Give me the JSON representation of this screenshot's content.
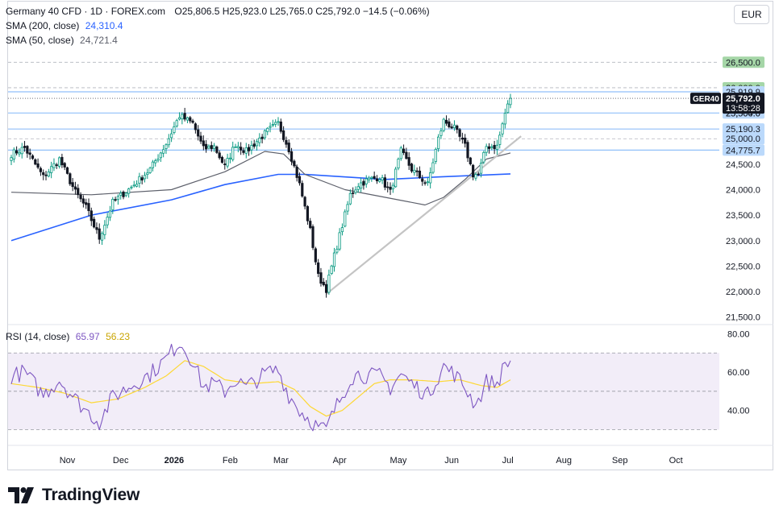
{
  "header": {
    "symbol_line": "Germany 40 CFD · 1D · FOREX.com",
    "ohlc": "O25,806.5  H25,923.0  L25,765.0  C25,792.0  −14.5 (−0.06%)",
    "sma200_label": "SMA (200, close)",
    "sma200_value": "24,310.4",
    "sma50_label": "SMA (50, close)",
    "sma50_value": "24,721.4",
    "currency": "EUR"
  },
  "rsi_legend": {
    "label": "RSI (14, close)",
    "value1": "65.97",
    "value2": "56.23"
  },
  "brand": {
    "name": "TradingView"
  },
  "colors": {
    "up": "#089981",
    "down": "#131722",
    "sma200": "#2962ff",
    "sma50": "#5d606b",
    "rsi": "#7e57c2",
    "rsi_ma": "#fdd835",
    "level_line": "#90bff9",
    "green_tag": "#a5d6a7",
    "blue_tag": "#bbd9fb",
    "trendline": "#c4c4c4"
  },
  "chart_data": [
    {
      "type": "candlestick",
      "title": "Germany 40 CFD · 1D · FOREX.com",
      "ylim": [
        21400,
        26900
      ],
      "y_ticks": [
        "26,500.0",
        "26,000.0",
        "25,500.0",
        "25,000.0",
        "24,500.0",
        "24,000.0",
        "23,500.0",
        "23,000.0",
        "22,500.0",
        "22,000.0",
        "21,500.0"
      ],
      "y_tick_values": [
        26500,
        26000,
        25500,
        25000,
        24500,
        24000,
        23500,
        23000,
        22500,
        22000,
        21500
      ],
      "x_ticks": [
        "Nov",
        "Dec",
        "2026",
        "Feb",
        "Mar",
        "Apr",
        "May",
        "Jun",
        "Jul",
        "Aug",
        "Sep",
        "Oct"
      ],
      "x_tick_index": [
        21,
        41,
        61,
        82,
        101,
        123,
        145,
        165,
        186,
        207,
        228,
        249
      ],
      "last_index": 187,
      "anchors": [
        [
          0,
          24700
        ],
        [
          5,
          24820
        ],
        [
          12,
          24250
        ],
        [
          18,
          24600
        ],
        [
          24,
          23950
        ],
        [
          28,
          23650
        ],
        [
          33,
          23050
        ],
        [
          38,
          23750
        ],
        [
          45,
          24050
        ],
        [
          52,
          24400
        ],
        [
          58,
          24900
        ],
        [
          63,
          25450
        ],
        [
          68,
          25300
        ],
        [
          72,
          24800
        ],
        [
          76,
          24850
        ],
        [
          80,
          24450
        ],
        [
          84,
          24900
        ],
        [
          88,
          24750
        ],
        [
          92,
          24950
        ],
        [
          96,
          25150
        ],
        [
          100,
          25300
        ],
        [
          104,
          24800
        ],
        [
          108,
          24100
        ],
        [
          112,
          23200
        ],
        [
          115,
          22300
        ],
        [
          118,
          22050
        ],
        [
          121,
          22700
        ],
        [
          124,
          23300
        ],
        [
          127,
          23900
        ],
        [
          130,
          24100
        ],
        [
          134,
          24200
        ],
        [
          138,
          24250
        ],
        [
          142,
          23950
        ],
        [
          146,
          24750
        ],
        [
          150,
          24400
        ],
        [
          154,
          24200
        ],
        [
          156,
          24100
        ],
        [
          160,
          25000
        ],
        [
          162,
          25350
        ],
        [
          166,
          25200
        ],
        [
          170,
          24850
        ],
        [
          173,
          24300
        ],
        [
          175,
          24300
        ],
        [
          178,
          24850
        ],
        [
          182,
          24850
        ],
        [
          185,
          25500
        ],
        [
          187,
          25792
        ]
      ],
      "sma200": [
        [
          0,
          23000
        ],
        [
          30,
          23500
        ],
        [
          60,
          23800
        ],
        [
          80,
          24100
        ],
        [
          100,
          24300
        ],
        [
          110,
          24300
        ],
        [
          140,
          24200
        ],
        [
          160,
          24250
        ],
        [
          187,
          24310
        ]
      ],
      "sma50": [
        [
          0,
          23950
        ],
        [
          30,
          23900
        ],
        [
          60,
          24000
        ],
        [
          80,
          24350
        ],
        [
          95,
          24750
        ],
        [
          102,
          24700
        ],
        [
          110,
          24300
        ],
        [
          125,
          24000
        ],
        [
          145,
          23800
        ],
        [
          155,
          23700
        ],
        [
          162,
          23850
        ],
        [
          170,
          24200
        ],
        [
          178,
          24600
        ],
        [
          187,
          24721
        ]
      ],
      "trendline": [
        [
          118,
          21950
        ],
        [
          191,
          25050
        ]
      ],
      "levels": [
        {
          "value": 26500,
          "label": "26,500.0",
          "style": "dashed",
          "tag": "green"
        },
        {
          "value": 26000,
          "label": "26,000.0",
          "style": "dashed",
          "tag": "green"
        },
        {
          "value": 25919.9,
          "label": "25,919.9",
          "style": "solid",
          "tag": "blue"
        },
        {
          "value": 25504,
          "label": "25,504.0",
          "style": "solid",
          "tag": "blue"
        },
        {
          "value": 25190.3,
          "label": "25,190.3",
          "style": "solid",
          "tag": "blue"
        },
        {
          "value": 25000,
          "label": "25,000.0",
          "style": "dashed",
          "tag": "blue"
        },
        {
          "value": 24775.7,
          "label": "24,775.7",
          "style": "solid",
          "tag": "blue"
        }
      ],
      "last_price": {
        "symbol": "GER40",
        "value": "25,792.0",
        "countdown": "13:58:28"
      }
    },
    {
      "type": "line",
      "title": "RSI (14, close)",
      "ylim": [
        23,
        84
      ],
      "y_ticks": [
        "80.00",
        "60.00",
        "40.00"
      ],
      "y_tick_values": [
        80,
        60,
        40
      ],
      "band": [
        30,
        70
      ],
      "mid": 50,
      "series": [
        {
          "name": "RSI",
          "anchors": [
            [
              0,
              58
            ],
            [
              5,
              60
            ],
            [
              12,
              48
            ],
            [
              18,
              56
            ],
            [
              24,
              46
            ],
            [
              28,
              40
            ],
            [
              33,
              34
            ],
            [
              38,
              47
            ],
            [
              45,
              53
            ],
            [
              52,
              59
            ],
            [
              58,
              67
            ],
            [
              63,
              76
            ],
            [
              68,
              66
            ],
            [
              72,
              52
            ],
            [
              76,
              54
            ],
            [
              80,
              50
            ],
            [
              84,
              56
            ],
            [
              88,
              52
            ],
            [
              92,
              56
            ],
            [
              96,
              60
            ],
            [
              100,
              61
            ],
            [
              104,
              48
            ],
            [
              108,
              40
            ],
            [
              112,
              35
            ],
            [
              115,
              31
            ],
            [
              118,
              30
            ],
            [
              121,
              40
            ],
            [
              124,
              48
            ],
            [
              127,
              57
            ],
            [
              130,
              59
            ],
            [
              134,
              58
            ],
            [
              138,
              58
            ],
            [
              142,
              52
            ],
            [
              146,
              59
            ],
            [
              150,
              54
            ],
            [
              154,
              50
            ],
            [
              156,
              48
            ],
            [
              160,
              58
            ],
            [
              162,
              63
            ],
            [
              166,
              59
            ],
            [
              170,
              52
            ],
            [
              173,
              45
            ],
            [
              175,
              45
            ],
            [
              178,
              55
            ],
            [
              182,
              54
            ],
            [
              185,
              64
            ],
            [
              187,
              66
            ]
          ]
        },
        {
          "name": "RSI MA",
          "anchors": [
            [
              0,
              54
            ],
            [
              10,
              52
            ],
            [
              20,
              49
            ],
            [
              30,
              44
            ],
            [
              40,
              46
            ],
            [
              50,
              52
            ],
            [
              58,
              58
            ],
            [
              65,
              66
            ],
            [
              72,
              63
            ],
            [
              80,
              56
            ],
            [
              90,
              54
            ],
            [
              100,
              55
            ],
            [
              106,
              51
            ],
            [
              112,
              42
            ],
            [
              118,
              37
            ],
            [
              124,
              40
            ],
            [
              130,
              47
            ],
            [
              136,
              54
            ],
            [
              142,
              56
            ],
            [
              150,
              56
            ],
            [
              160,
              55
            ],
            [
              168,
              56
            ],
            [
              176,
              53
            ],
            [
              182,
              52
            ],
            [
              187,
              56
            ]
          ]
        }
      ]
    }
  ]
}
